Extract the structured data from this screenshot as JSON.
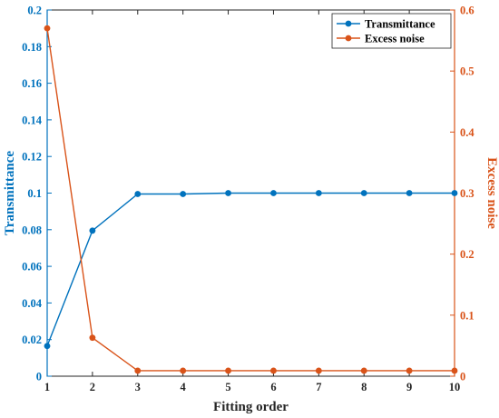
{
  "chart_data": {
    "type": "line",
    "x": [
      1,
      2,
      3,
      4,
      5,
      6,
      7,
      8,
      9,
      10
    ],
    "xlabel": "Fitting order",
    "xlim": [
      1,
      10
    ],
    "x_ticks": [
      "1",
      "2",
      "3",
      "4",
      "5",
      "6",
      "7",
      "8",
      "9",
      "10"
    ],
    "y_left": {
      "label": "Transmittance",
      "lim": [
        0,
        0.2
      ],
      "ticks": [
        "0",
        "0.02",
        "0.04",
        "0.06",
        "0.08",
        "0.1",
        "0.12",
        "0.14",
        "0.16",
        "0.18",
        "0.2"
      ],
      "tick_values": [
        0,
        0.02,
        0.04,
        0.06,
        0.08,
        0.1,
        0.12,
        0.14,
        0.16,
        0.18,
        0.2
      ],
      "color": "#0072BD"
    },
    "y_right": {
      "label": "Excess noise",
      "lim": [
        0,
        0.6
      ],
      "ticks": [
        "0",
        "0.1",
        "0.2",
        "0.3",
        "0.4",
        "0.5",
        "0.6"
      ],
      "tick_values": [
        0,
        0.1,
        0.2,
        0.3,
        0.4,
        0.5,
        0.6
      ],
      "color": "#D95319"
    },
    "series": [
      {
        "name": "Transmittance",
        "axis": "left",
        "color": "#0072BD",
        "values": [
          0.0165,
          0.0795,
          0.0995,
          0.0995,
          0.1,
          0.1,
          0.1,
          0.1,
          0.1,
          0.1
        ]
      },
      {
        "name": "Excess noise",
        "axis": "right",
        "color": "#D95319",
        "values": [
          0.57,
          0.063,
          0.009,
          0.009,
          0.009,
          0.009,
          0.009,
          0.009,
          0.009,
          0.009
        ]
      }
    ],
    "legend": {
      "position": "top-right"
    },
    "grid": false
  }
}
